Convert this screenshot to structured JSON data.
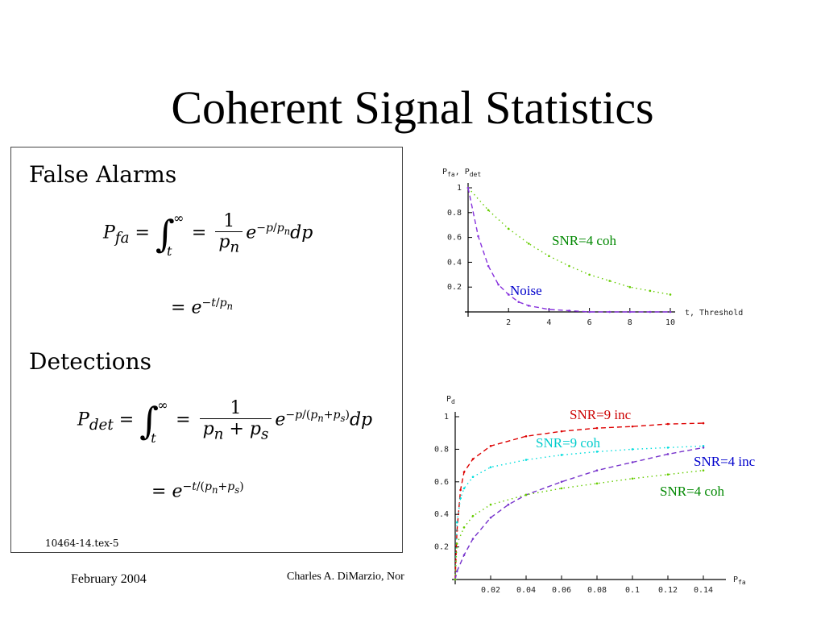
{
  "slide": {
    "title": "Coherent Signal Statistics",
    "footer_date": "February 2004",
    "footer_author": "Charles A. DiMarzio, Nor"
  },
  "equations": {
    "false_alarms_heading": "False Alarms",
    "detections_heading": "Detections",
    "tex_id": "10464-14.tex-5"
  },
  "chart_data": [
    {
      "type": "line",
      "ylabel_main": "P",
      "ylabel_sub1": "fa",
      "ylabel_sep": ", P",
      "ylabel_sub2": "det",
      "xlabel": "t, Threshold",
      "xlim": [
        0,
        10
      ],
      "ylim": [
        0,
        1
      ],
      "xticks": [
        "2",
        "4",
        "6",
        "8",
        "10"
      ],
      "yticks": [
        "0.2",
        "0.4",
        "0.6",
        "0.8",
        "1"
      ],
      "series": [
        {
          "name": "SNR=4 coh",
          "color": "#66cc00",
          "dash": "dot",
          "x": [
            0,
            1,
            2,
            3,
            4,
            5,
            6,
            7,
            8,
            9,
            10
          ],
          "y": [
            1.0,
            0.82,
            0.67,
            0.55,
            0.45,
            0.37,
            0.3,
            0.25,
            0.2,
            0.17,
            0.14
          ]
        },
        {
          "name": "Noise",
          "color": "#8833dd",
          "dash": "dash",
          "x": [
            0,
            0.5,
            1,
            1.5,
            2,
            2.5,
            3,
            4,
            5,
            6,
            7,
            8,
            9,
            10
          ],
          "y": [
            1.0,
            0.61,
            0.37,
            0.22,
            0.14,
            0.08,
            0.05,
            0.02,
            0.01,
            0.0,
            0.0,
            0.0,
            0.0,
            0.0
          ]
        }
      ],
      "annotations": [
        {
          "text": "SNR=4 coh",
          "color": "#008800"
        },
        {
          "text": "Noise",
          "color": "#0000cc"
        }
      ]
    },
    {
      "type": "line",
      "ylabel_main": "P",
      "ylabel_sub": "d",
      "xlabel_main": "P",
      "xlabel_sub": "fa",
      "xlim": [
        0,
        0.15
      ],
      "ylim": [
        0,
        1
      ],
      "xticks": [
        "0.02",
        "0.04",
        "0.06",
        "0.08",
        "0.1",
        "0.12",
        "0.14"
      ],
      "yticks": [
        "0.2",
        "0.4",
        "0.6",
        "0.8",
        "1"
      ],
      "series": [
        {
          "name": "SNR=9 inc",
          "color": "#dd0000",
          "dash": "dash",
          "x": [
            0,
            0.001,
            0.003,
            0.005,
            0.01,
            0.02,
            0.04,
            0.06,
            0.08,
            0.1,
            0.12,
            0.14
          ],
          "y": [
            0.0,
            0.3,
            0.55,
            0.66,
            0.74,
            0.82,
            0.88,
            0.91,
            0.93,
            0.94,
            0.955,
            0.96
          ]
        },
        {
          "name": "SNR=9 coh",
          "color": "#00dddd",
          "dash": "dot",
          "x": [
            0,
            0.001,
            0.003,
            0.005,
            0.01,
            0.02,
            0.04,
            0.06,
            0.08,
            0.1,
            0.12,
            0.14
          ],
          "y": [
            0.0,
            0.35,
            0.5,
            0.56,
            0.63,
            0.69,
            0.735,
            0.765,
            0.785,
            0.8,
            0.81,
            0.82
          ]
        },
        {
          "name": "SNR=4 inc",
          "color": "#7733cc",
          "dash": "dash",
          "x": [
            0,
            0.001,
            0.005,
            0.01,
            0.02,
            0.03,
            0.04,
            0.06,
            0.08,
            0.1,
            0.12,
            0.14
          ],
          "y": [
            0.0,
            0.05,
            0.15,
            0.25,
            0.38,
            0.46,
            0.52,
            0.6,
            0.67,
            0.72,
            0.77,
            0.81
          ]
        },
        {
          "name": "SNR=4 coh",
          "color": "#66cc00",
          "dash": "dot",
          "x": [
            0,
            0.001,
            0.005,
            0.01,
            0.02,
            0.04,
            0.06,
            0.08,
            0.1,
            0.12,
            0.14
          ],
          "y": [
            0.0,
            0.22,
            0.32,
            0.39,
            0.46,
            0.52,
            0.56,
            0.59,
            0.62,
            0.645,
            0.67
          ]
        }
      ],
      "annotations": [
        {
          "text": "SNR=9 inc",
          "color": "#cc0000"
        },
        {
          "text": "SNR=9 coh",
          "color": "#00cccc"
        },
        {
          "text": "SNR=4 inc",
          "color": "#0000cc"
        },
        {
          "text": "SNR=4 coh",
          "color": "#008800"
        }
      ]
    }
  ]
}
